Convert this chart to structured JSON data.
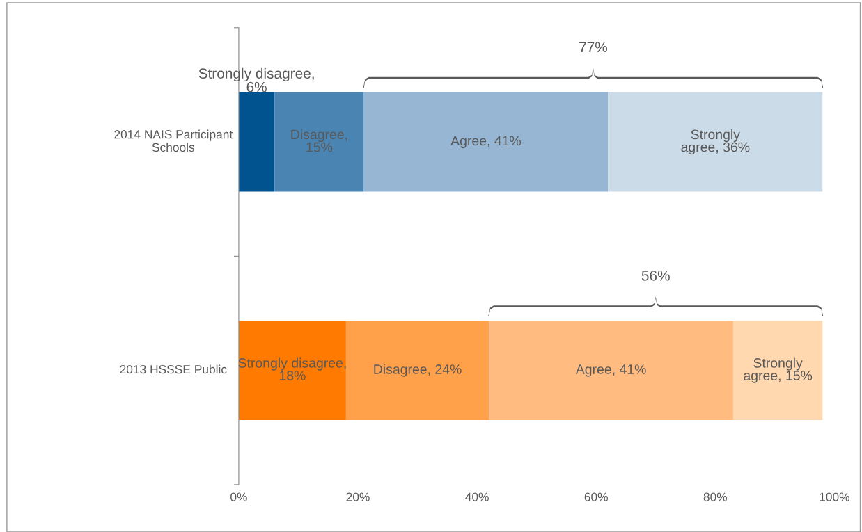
{
  "chart_data": {
    "type": "bar",
    "orientation": "horizontal",
    "stacked": true,
    "categories": [
      "2014 NAIS Participant\nSchools",
      "2013 HSSSE Public"
    ],
    "series": [
      {
        "colors": [
          "#00538f",
          "#ff7a00"
        ],
        "values": [
          6,
          18
        ],
        "value_labels": [
          "Strongly disagree,\n6%",
          "Strongly disagree,\n18%"
        ]
      },
      {
        "colors": [
          "#4a84b2",
          "#ffa04a"
        ],
        "values": [
          15,
          24
        ],
        "value_labels": [
          "Disagree,\n15%",
          "Disagree, 24%"
        ]
      },
      {
        "colors": [
          "#96b6d3",
          "#ffbb80"
        ],
        "values": [
          41,
          41
        ],
        "value_labels": [
          "Agree, 41%",
          "Agree, 41%"
        ]
      },
      {
        "colors": [
          "#ccdbe8",
          "#ffd8b0"
        ],
        "values": [
          36,
          15
        ],
        "value_labels": [
          "Strongly\nagree, 36%",
          "Strongly\nagree, 15%"
        ]
      }
    ],
    "annotations": [
      "77%",
      "56%"
    ],
    "xlim": [
      0,
      100
    ],
    "xticks": [
      {
        "value": 0,
        "label": "0%"
      },
      {
        "value": 20,
        "label": "20%"
      },
      {
        "value": 40,
        "label": "40%"
      },
      {
        "value": 60,
        "label": "60%"
      },
      {
        "value": 80,
        "label": "80%"
      },
      {
        "value": 100,
        "label": "100%"
      }
    ],
    "grid": false,
    "legend": false
  }
}
